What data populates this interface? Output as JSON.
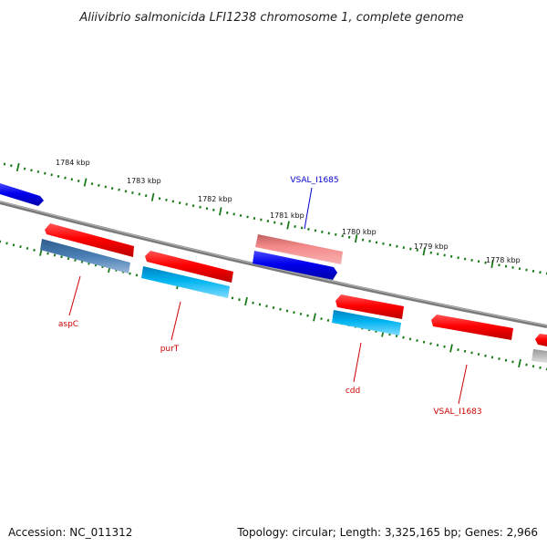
{
  "title": "Aliivibrio salmonicida LFI1238 chromosome 1, complete genome",
  "ticks": [
    "1784 kbp",
    "1783 kbp",
    "1782 kbp",
    "1781 kbp",
    "1780 kbp",
    "1779 kbp",
    "1778 kbp"
  ],
  "genes": [
    {
      "label": "aspC",
      "color": "#cc0000"
    },
    {
      "label": "purT",
      "color": "#cc0000"
    },
    {
      "label": "VSAL_I1685",
      "color": "#0000cc"
    },
    {
      "label": "cdd",
      "color": "#cc0000"
    },
    {
      "label": "VSAL_I1683",
      "color": "#cc0000"
    }
  ],
  "footer": {
    "accession": "Accession: NC_011312",
    "summary": "Topology: circular; Length: 3,325,165 bp; Genes: 2,966"
  },
  "colors": {
    "forward_cds": "#ff0000",
    "reverse_cds_blue": "#0000ee",
    "light_cds": "#f08080",
    "cyan_cds": "#00b0ee",
    "steel_cds": "#4a7fb5",
    "grey_cds": "#bbbbbb",
    "backbone": "#888888",
    "tick": "#1a7a1a"
  }
}
